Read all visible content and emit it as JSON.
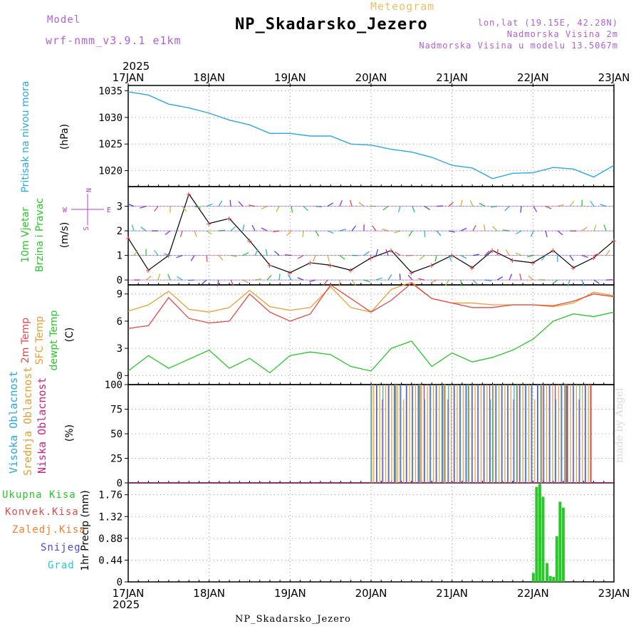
{
  "header": {
    "model_label": "Model",
    "model_version": "wrf-nmm_v3.9.1  e1km",
    "meteogram_label": "Meteogram",
    "station": "NP_Skadarsko_Jezero",
    "coords": "lon,lat (19.15E, 42.28N)",
    "altitude": "Nadmorska Visina 2m",
    "model_altitude": "Nadmorska Visina u modelu 13.5067m"
  },
  "footer": {
    "station": "NP_Skadarsko_Jezero",
    "credit": "made by Angel"
  },
  "time_axis": {
    "year": "2025",
    "labels": [
      "17JAN",
      "18JAN",
      "19JAN",
      "20JAN",
      "21JAN",
      "22JAN",
      "23JAN"
    ]
  },
  "colors": {
    "pressure": "#2aa8e0",
    "temp2m": "#e84848",
    "sfc_temp": "#e8a030",
    "dewpt": "#28c828",
    "high_cloud": "#28a8e0",
    "mid_cloud": "#e0a030",
    "low_cloud": "#d02080",
    "precip_total": "#28c828",
    "precip_conv": "#e84848",
    "precip_frozen": "#f08030",
    "precip_snow": "#4848e0",
    "precip_hail": "#28c8c8",
    "wind_label": "#28c828",
    "compass": "#b040d0"
  },
  "chart_data": [
    {
      "type": "line",
      "ylabel": "Pritisak na nivou mora",
      "unit": "(hPa)",
      "ylim": [
        1017,
        1036
      ],
      "yticks": [
        1020,
        1025,
        1030,
        1035
      ],
      "x": [
        0,
        0.25,
        0.5,
        0.75,
        1,
        1.25,
        1.5,
        1.75,
        2,
        2.25,
        2.5,
        2.75,
        3,
        3.25,
        3.5,
        3.75,
        4,
        4.25,
        4.5,
        4.75,
        5,
        5.25,
        5.5,
        5.75,
        6
      ],
      "series": [
        {
          "values": [
            1034.8,
            1034.2,
            1032.5,
            1031.8,
            1030.8,
            1029.5,
            1028.6,
            1027.0,
            1027.0,
            1026.5,
            1026.5,
            1025.0,
            1024.8,
            1024.0,
            1023.5,
            1022.5,
            1021.0,
            1020.5,
            1018.5,
            1019.5,
            1019.6,
            1020.6,
            1020.3,
            1018.8,
            1021.0
          ]
        }
      ],
      "grid": true
    },
    {
      "type": "line",
      "title_lines": [
        "10m Vjetar",
        "Brzina i Pravac"
      ],
      "unit": "(m/s)",
      "ylim": [
        -0.2,
        3.8
      ],
      "yticks": [
        0,
        1,
        2,
        3
      ],
      "compass": {
        "north": "N",
        "south": "S",
        "west": "W",
        "east": "E"
      },
      "x": [
        0,
        0.25,
        0.5,
        0.75,
        1,
        1.25,
        1.5,
        1.75,
        2,
        2.25,
        2.5,
        2.75,
        3,
        3.25,
        3.5,
        3.75,
        4,
        4.25,
        4.5,
        4.75,
        5,
        5.25,
        5.5,
        5.75,
        6
      ],
      "series": [
        {
          "values": [
            1.7,
            0.4,
            1.0,
            3.5,
            2.3,
            2.5,
            1.6,
            0.6,
            0.3,
            0.7,
            0.6,
            0.4,
            0.9,
            1.2,
            0.3,
            0.6,
            1.0,
            0.5,
            1.2,
            0.8,
            0.7,
            1.2,
            0.5,
            0.9,
            1.6
          ]
        }
      ],
      "grid": true
    },
    {
      "type": "line",
      "ylabel": "2m Temp / SFC Temp / dewpt Temp",
      "unit": "(C)",
      "ylim": [
        -1,
        10
      ],
      "yticks": [
        0,
        3,
        6,
        9
      ],
      "x": [
        0,
        0.25,
        0.5,
        0.75,
        1,
        1.25,
        1.5,
        1.75,
        2,
        2.25,
        2.5,
        2.75,
        3,
        3.25,
        3.5,
        3.75,
        4,
        4.25,
        4.5,
        4.75,
        5,
        5.25,
        5.5,
        5.75,
        6
      ],
      "series": [
        {
          "name": "2m Temp",
          "values": [
            5.2,
            5.5,
            8.6,
            6.3,
            5.8,
            6.0,
            9.0,
            7.0,
            6.0,
            6.8,
            10.0,
            8.5,
            7.0,
            8.3,
            10.2,
            8.5,
            8.0,
            7.5,
            7.5,
            7.8,
            7.8,
            7.7,
            8.2,
            9.0,
            8.7
          ]
        },
        {
          "name": "SFC Temp",
          "values": [
            7.1,
            7.8,
            9.3,
            7.3,
            7.0,
            7.5,
            9.4,
            7.6,
            7.2,
            7.5,
            9.8,
            7.5,
            7.0,
            9.5,
            10.3,
            8.5,
            8.0,
            8.0,
            7.8,
            7.8,
            7.8,
            7.6,
            8.0,
            9.2,
            8.8
          ]
        },
        {
          "name": "dewpt Temp",
          "values": [
            0.5,
            2.2,
            0.8,
            1.8,
            2.8,
            0.8,
            1.9,
            0.3,
            2.2,
            2.6,
            2.3,
            1.0,
            0.5,
            3.0,
            3.8,
            1.0,
            2.5,
            1.5,
            2.0,
            2.8,
            4.0,
            6.0,
            6.8,
            6.5,
            7.0
          ]
        }
      ],
      "grid": true
    },
    {
      "type": "bar",
      "ylabel": "Visoka Oblacnost / Srednja Oblacnost / Niska Oblacnost",
      "unit": "(%)",
      "ylim": [
        0,
        100
      ],
      "yticks": [
        0,
        25,
        50,
        75,
        100
      ],
      "note": "Cloud cover 0% from 17JAN to 20JAN, then intermittent 100% bars through 23JAN",
      "x": [
        3.0,
        3.3,
        3.6,
        3.9,
        4.2,
        4.5,
        4.8,
        5.1,
        5.4,
        5.7
      ],
      "series": [
        {
          "name": "Visoka Oblacnost",
          "values": [
            100,
            100,
            100,
            100,
            100,
            100,
            100,
            100,
            100,
            0
          ]
        },
        {
          "name": "Srednja Oblacnost",
          "values": [
            100,
            100,
            100,
            100,
            100,
            100,
            100,
            100,
            100,
            100
          ]
        },
        {
          "name": "Niska Oblacnost",
          "values": [
            0,
            0,
            0,
            0,
            0,
            0,
            0,
            0,
            100,
            100
          ]
        }
      ],
      "grid": true
    },
    {
      "type": "bar",
      "ylabel": "1hr Precip",
      "unit": "(mm)",
      "ylim": [
        0,
        2.0
      ],
      "yticks": [
        0,
        0.44,
        0.88,
        1.32,
        1.76
      ],
      "legend": [
        "Ukupna Kisa",
        "Konvek.Kisa",
        "Zaledj.Kisa",
        "Snijeg",
        "Grad"
      ],
      "x": [
        5.0,
        5.04,
        5.08,
        5.12,
        5.17,
        5.21,
        5.25,
        5.29,
        5.33,
        5.37,
        5.42
      ],
      "series": [
        {
          "name": "Ukupna Kisa",
          "values": [
            0.18,
            1.92,
            1.98,
            1.72,
            0.38,
            0.12,
            0.1,
            0.92,
            1.62,
            1.5,
            0.0
          ]
        }
      ],
      "grid": true
    }
  ]
}
